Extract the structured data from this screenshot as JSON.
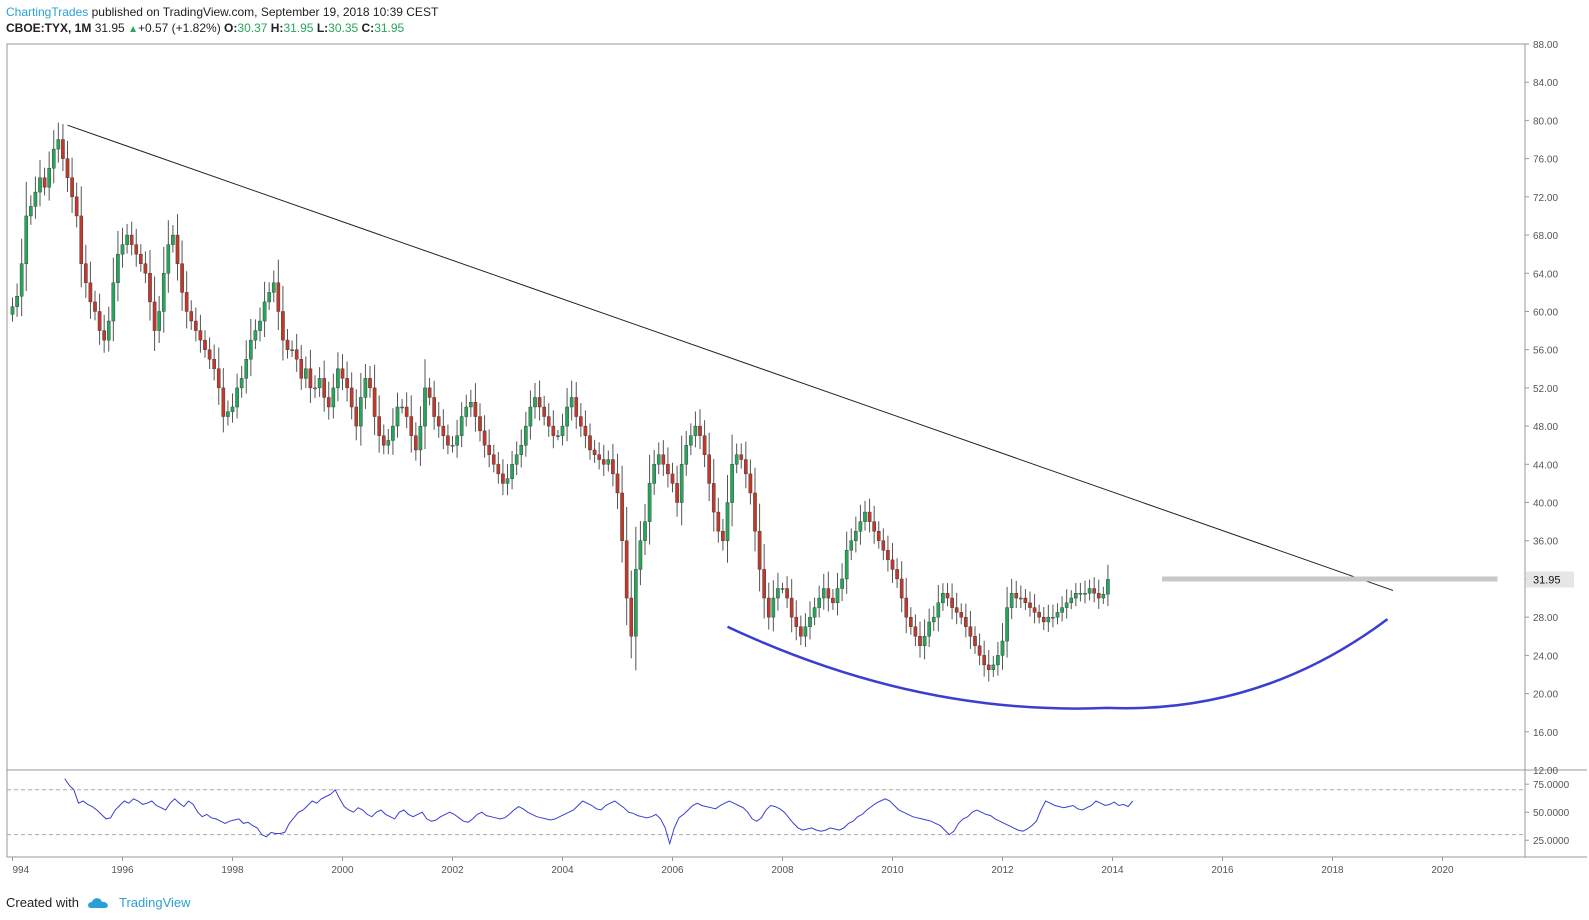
{
  "header": {
    "author": "ChartingTrades",
    "published": "published on TradingView.com, September 19, 2018 10:39 CEST",
    "symbol": "CBOE:TYX, 1M",
    "last": "31.95",
    "change": "+0.57 (+1.82%)",
    "o_label": "O:",
    "o_val": "30.37",
    "h_label": "H:",
    "h_val": "31.95",
    "l_label": "L:",
    "l_val": "30.35",
    "c_label": "C:",
    "c_val": "31.95"
  },
  "footer": {
    "created_with": "Created with",
    "brand": "TradingView"
  },
  "colors": {
    "up": "#26a65b",
    "down": "#c0392b",
    "wick": "#555555",
    "trendline": "#222222",
    "arc": "#3b3fd1",
    "rsi": "#3b3fd1",
    "resistance": "#c8c8c8",
    "accent": "#2a9fd6"
  },
  "chart_data": {
    "type": "candlestick",
    "price_ylim": [
      12,
      88
    ],
    "price_ticks": [
      "88.00",
      "84.00",
      "80.00",
      "76.00",
      "72.00",
      "68.00",
      "64.00",
      "60.00",
      "56.00",
      "52.00",
      "48.00",
      "44.00",
      "40.00",
      "36.00",
      "32.00",
      "28.00",
      "24.00",
      "20.00",
      "16.00",
      "12.00"
    ],
    "last_price_label": "31.95",
    "x_labels": [
      "994",
      "1996",
      "1998",
      "2000",
      "2002",
      "2004",
      "2006",
      "2008",
      "2010",
      "2012",
      "2014",
      "2016",
      "2018",
      "2020"
    ],
    "xlim": [
      1993.9,
      2021.5
    ],
    "ohlc_monthly_closes": [
      60.5,
      61.6,
      65,
      70,
      71,
      72.5,
      74,
      73,
      75,
      77,
      78,
      76,
      74,
      72,
      70,
      65,
      63,
      61,
      60,
      58,
      57,
      59,
      63,
      66,
      67,
      68,
      67,
      66,
      65,
      64,
      61,
      58,
      60,
      64,
      67,
      68,
      65,
      62,
      60,
      59,
      58,
      57,
      56,
      55,
      54,
      52,
      49,
      49.5,
      50,
      52,
      53,
      55,
      57,
      58,
      59,
      61,
      62,
      63,
      60,
      57,
      56,
      56,
      55,
      53,
      54,
      52,
      52,
      53,
      51,
      50,
      52,
      54,
      53,
      52,
      50,
      48,
      51,
      53,
      52,
      49,
      47,
      46,
      46.5,
      48,
      50,
      50,
      49,
      47,
      45.5,
      48,
      52,
      51,
      49,
      48,
      47,
      46,
      46,
      47,
      49,
      50,
      50.5,
      49,
      47.5,
      46,
      45,
      44,
      43,
      42,
      42.5,
      44,
      45,
      46,
      48,
      50,
      51,
      50,
      49,
      48,
      47,
      47,
      48,
      50,
      51,
      49,
      48,
      47,
      45.5,
      45,
      44.5,
      44,
      44.5,
      43,
      41,
      36,
      30,
      26,
      33,
      36,
      38,
      42,
      44,
      45,
      44,
      43,
      42,
      40,
      44,
      46,
      47,
      48,
      47,
      45,
      42,
      39,
      37,
      36,
      40,
      44,
      45,
      44.5,
      43,
      41,
      37,
      33,
      30,
      28,
      30,
      31,
      31,
      30,
      28,
      27,
      26,
      27,
      28,
      29,
      30,
      31,
      30,
      29.5,
      31,
      32,
      35,
      36,
      37,
      38,
      39,
      38,
      37,
      36,
      35,
      34,
      33,
      32,
      30,
      28,
      27,
      26,
      25,
      26,
      27.5,
      28,
      29.5,
      30.5,
      30,
      29,
      28.5,
      28,
      27,
      26,
      25,
      24,
      23,
      22.5,
      23,
      24,
      25.5,
      29,
      30.5,
      30,
      30,
      29.5,
      29,
      28.5,
      28,
      27.5,
      28,
      28,
      28.5,
      29,
      29.5,
      30,
      30.5,
      30.5,
      30.5,
      31,
      30.5,
      30,
      30.4,
      31.95
    ],
    "annotations": {
      "downtrend_line": {
        "from": [
          1995.0,
          79.5
        ],
        "to": [
          2019.1,
          30.8
        ]
      },
      "resistance_level": {
        "y": 32.0,
        "from_x": 2014.9,
        "to_x": 2021.0
      },
      "rounding_bottom": {
        "from": [
          2007.0,
          27.0
        ],
        "bottom": [
          2013.9,
          18.5
        ],
        "to": [
          2019.0,
          27.8
        ]
      }
    },
    "rsi": {
      "ylim": [
        10,
        85
      ],
      "ticks": [
        "75.0000",
        "50.0000",
        "25.0000"
      ],
      "levels": [
        70,
        30
      ],
      "values": [
        80,
        74,
        70,
        58,
        60,
        57,
        55,
        52,
        48,
        44,
        45,
        52,
        56,
        60,
        58,
        62,
        60,
        57,
        58,
        60,
        56,
        54,
        52,
        58,
        62,
        58,
        55,
        60,
        57,
        50,
        46,
        48,
        45,
        44,
        42,
        40,
        42,
        43,
        44,
        40,
        41,
        38,
        36,
        30,
        28,
        32,
        31,
        31,
        32,
        40,
        45,
        50,
        52,
        56,
        60,
        58,
        62,
        64,
        66,
        70,
        62,
        55,
        52,
        50,
        54,
        52,
        48,
        46,
        50,
        52,
        48,
        46,
        44,
        50,
        52,
        48,
        46,
        48,
        50,
        44,
        42,
        43,
        46,
        48,
        50,
        48,
        45,
        42,
        41,
        44,
        48,
        50,
        47,
        46,
        45,
        44,
        45,
        48,
        52,
        55,
        53,
        50,
        48,
        46,
        45,
        44,
        43,
        44,
        46,
        48,
        50,
        52,
        56,
        60,
        58,
        56,
        53,
        52,
        56,
        58,
        60,
        57,
        54,
        50,
        49,
        47,
        46,
        45,
        46,
        48,
        44,
        36,
        22,
        36,
        45,
        48,
        52,
        56,
        58,
        56,
        55,
        54,
        53,
        56,
        58,
        60,
        58,
        56,
        54,
        50,
        44,
        42,
        45,
        52,
        56,
        55,
        53,
        50,
        45,
        40,
        36,
        34,
        35,
        36,
        34,
        33,
        34,
        36,
        35,
        34,
        36,
        40,
        42,
        46,
        48,
        52,
        55,
        58,
        60,
        62,
        60,
        56,
        52,
        50,
        48,
        46,
        45,
        44,
        43,
        42,
        40,
        38,
        34,
        30,
        33,
        40,
        44,
        46,
        50,
        52,
        50,
        48,
        47,
        44,
        42,
        40,
        38,
        36,
        34,
        33,
        35,
        38,
        42,
        52,
        60,
        58,
        56,
        55,
        54,
        55,
        56,
        53,
        52,
        54,
        56,
        60,
        58,
        56,
        57,
        59,
        56,
        57,
        55,
        60
      ]
    }
  }
}
